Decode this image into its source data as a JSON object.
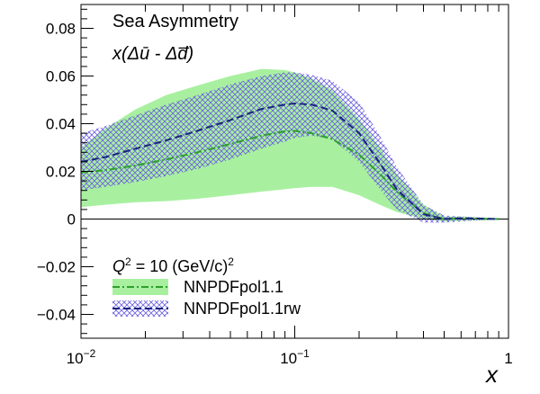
{
  "chart_data": {
    "type": "line",
    "title": "Sea Asymmetry",
    "ylabel_annotation": "x(Δū - Δd̅)",
    "xlabel": "x",
    "x_scale": "log",
    "xlim": [
      0.01,
      1
    ],
    "ylim": [
      -0.05,
      0.09
    ],
    "x_ticks": [
      {
        "value": 0.01,
        "base": "10",
        "exp": "−2"
      },
      {
        "value": 0.1,
        "base": "10",
        "exp": "−1"
      },
      {
        "value": 1,
        "base": "1",
        "exp": ""
      }
    ],
    "y_ticks": [
      {
        "value": -0.04,
        "label": "−0.04"
      },
      {
        "value": -0.02,
        "label": "−0.02"
      },
      {
        "value": 0,
        "label": "0"
      },
      {
        "value": 0.02,
        "label": "0.02"
      },
      {
        "value": 0.04,
        "label": "0.04"
      },
      {
        "value": 0.06,
        "label": "0.06"
      },
      {
        "value": 0.08,
        "label": "0.08"
      }
    ],
    "annotation": {
      "q2_prefix": "Q",
      "q2_exp": "2",
      "q2_rest": " = 10 (GeV/c)",
      "q2_unit_exp": "2"
    },
    "series": [
      {
        "name": "NNPDFpol1.1",
        "color": "#2ca02c",
        "band_color": "#a8f0a0",
        "line_style": "dash-dot",
        "x": [
          0.01,
          0.013,
          0.018,
          0.025,
          0.035,
          0.05,
          0.07,
          0.09,
          0.1,
          0.12,
          0.15,
          0.2,
          0.25,
          0.3,
          0.4,
          0.5,
          0.6,
          0.7,
          0.8,
          0.9
        ],
        "central": [
          0.0195,
          0.0205,
          0.0225,
          0.025,
          0.028,
          0.0315,
          0.035,
          0.0368,
          0.037,
          0.036,
          0.0335,
          0.027,
          0.019,
          0.0115,
          0.0025,
          0.0,
          0.0003,
          0.0002,
          0.0001,
          0.0
        ],
        "upper": [
          0.03,
          0.038,
          0.046,
          0.052,
          0.056,
          0.06,
          0.063,
          0.0625,
          0.0615,
          0.059,
          0.054,
          0.042,
          0.03,
          0.019,
          0.006,
          0.001,
          0.001,
          0.0008,
          0.0005,
          0.0002
        ],
        "lower": [
          0.005,
          0.006,
          0.007,
          0.0075,
          0.0085,
          0.01,
          0.0115,
          0.0125,
          0.013,
          0.0135,
          0.0135,
          0.01,
          0.006,
          0.003,
          0.0,
          -0.001,
          -0.0008,
          -0.0006,
          -0.0004,
          -0.0002
        ]
      },
      {
        "name": "NNPDFpol1.1rw",
        "color": "#1a237e",
        "band_color": "#6b5fe0",
        "line_style": "dashed",
        "x": [
          0.01,
          0.013,
          0.018,
          0.025,
          0.035,
          0.05,
          0.07,
          0.09,
          0.1,
          0.12,
          0.15,
          0.2,
          0.25,
          0.3,
          0.4,
          0.5,
          0.6,
          0.7,
          0.8,
          0.9
        ],
        "central": [
          0.024,
          0.026,
          0.0295,
          0.033,
          0.037,
          0.0415,
          0.0462,
          0.048,
          0.0485,
          0.048,
          0.0455,
          0.036,
          0.0235,
          0.0125,
          0.002,
          0.0,
          0.0003,
          0.0002,
          0.0001,
          0.0
        ],
        "upper": [
          0.036,
          0.039,
          0.0435,
          0.048,
          0.052,
          0.0565,
          0.06,
          0.0615,
          0.0615,
          0.0605,
          0.058,
          0.049,
          0.035,
          0.022,
          0.006,
          0.0015,
          0.001,
          0.0008,
          0.0005,
          0.0002
        ],
        "lower": [
          0.012,
          0.0135,
          0.0155,
          0.018,
          0.021,
          0.025,
          0.0295,
          0.0325,
          0.034,
          0.035,
          0.0335,
          0.024,
          0.0125,
          0.004,
          -0.0015,
          -0.0015,
          -0.001,
          -0.0006,
          -0.0004,
          -0.0002
        ]
      }
    ]
  }
}
